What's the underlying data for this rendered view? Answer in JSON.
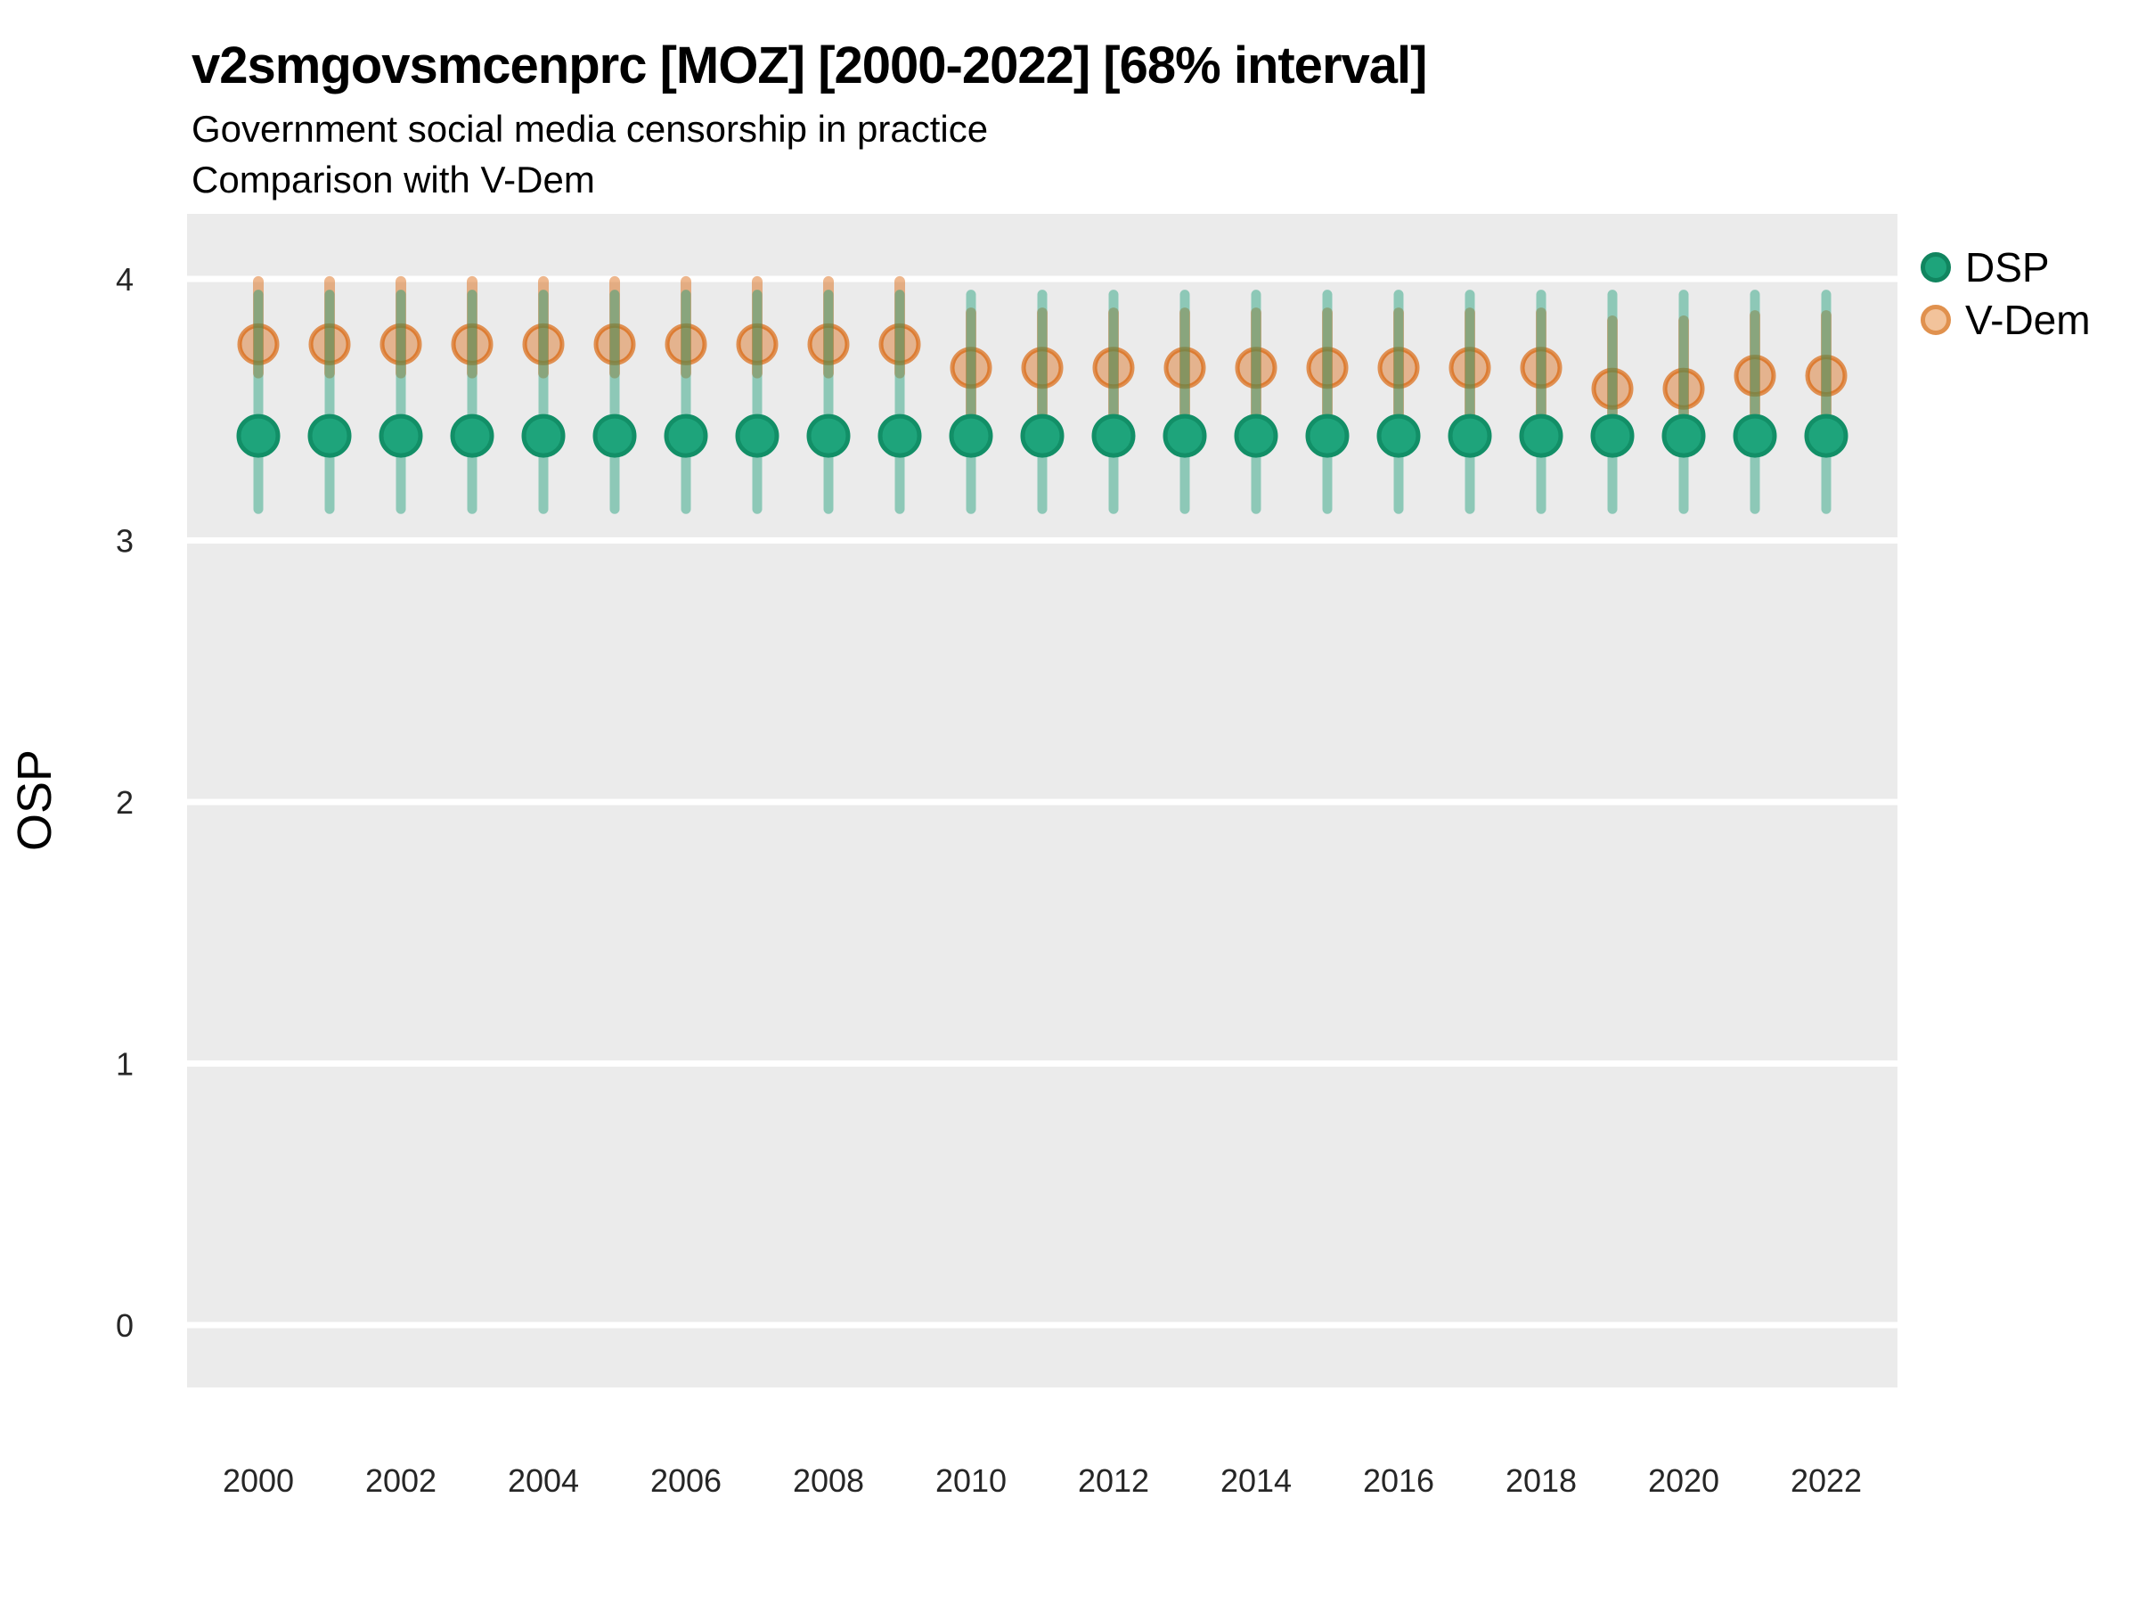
{
  "header": {
    "title": "v2smgovsmcenprc [MOZ] [2000-2022] [68% interval]",
    "subtitle_line1": "Government social media censorship in practice",
    "subtitle_line2": "Comparison with V-Dem"
  },
  "legend": {
    "items": [
      {
        "label": "DSP"
      },
      {
        "label": "V-Dem"
      }
    ]
  },
  "chart_data": {
    "type": "pointrange",
    "title": "v2smgovsmcenprc [MOZ] [2000-2022] [68% interval]",
    "subtitle": [
      "Government social media censorship in practice",
      "Comparison with V-Dem"
    ],
    "xlabel": "",
    "ylabel": "OSP",
    "ylim": [
      0,
      4
    ],
    "yticks": [
      0,
      1,
      2,
      3,
      4
    ],
    "xticks": [
      2000,
      2002,
      2004,
      2006,
      2008,
      2010,
      2012,
      2014,
      2016,
      2018,
      2020,
      2022
    ],
    "grid": "horizontal-major-only",
    "legend_position": "right",
    "interval_level": "68%",
    "years": [
      2000,
      2001,
      2002,
      2003,
      2004,
      2005,
      2006,
      2007,
      2008,
      2009,
      2010,
      2011,
      2012,
      2013,
      2014,
      2015,
      2016,
      2017,
      2018,
      2019,
      2020,
      2021,
      2022
    ],
    "series": [
      {
        "name": "DSP",
        "color": "#1B9E77",
        "point_fill": "#1EA47B",
        "point_stroke": "#128F67",
        "bar_color": "rgba(27,158,119,0.45)",
        "values": [
          3.4,
          3.4,
          3.4,
          3.4,
          3.4,
          3.4,
          3.4,
          3.4,
          3.4,
          3.4,
          3.4,
          3.4,
          3.4,
          3.4,
          3.4,
          3.4,
          3.4,
          3.4,
          3.4,
          3.4,
          3.4,
          3.4,
          3.4
        ],
        "lo": [
          3.12,
          3.12,
          3.12,
          3.12,
          3.12,
          3.12,
          3.12,
          3.12,
          3.12,
          3.12,
          3.12,
          3.12,
          3.12,
          3.12,
          3.12,
          3.12,
          3.12,
          3.12,
          3.12,
          3.12,
          3.12,
          3.12,
          3.12
        ],
        "hi": [
          3.94,
          3.94,
          3.94,
          3.94,
          3.94,
          3.94,
          3.94,
          3.94,
          3.94,
          3.94,
          3.94,
          3.94,
          3.94,
          3.94,
          3.94,
          3.94,
          3.94,
          3.94,
          3.94,
          3.94,
          3.94,
          3.94,
          3.94
        ]
      },
      {
        "name": "V-Dem",
        "color": "#D95F02",
        "point_fill": "rgba(217,95,2,0.40)",
        "point_stroke": "rgba(217,95,2,0.65)",
        "bar_color": "rgba(217,95,2,0.45)",
        "values": [
          3.75,
          3.75,
          3.75,
          3.75,
          3.75,
          3.75,
          3.75,
          3.75,
          3.75,
          3.75,
          3.66,
          3.66,
          3.66,
          3.66,
          3.66,
          3.66,
          3.66,
          3.66,
          3.66,
          3.58,
          3.58,
          3.63,
          3.63
        ],
        "lo": [
          3.64,
          3.64,
          3.64,
          3.64,
          3.64,
          3.64,
          3.64,
          3.64,
          3.64,
          3.64,
          3.48,
          3.48,
          3.48,
          3.48,
          3.48,
          3.48,
          3.48,
          3.48,
          3.48,
          3.42,
          3.42,
          3.45,
          3.45
        ],
        "hi": [
          3.99,
          3.99,
          3.99,
          3.99,
          3.99,
          3.99,
          3.99,
          3.99,
          3.99,
          3.99,
          3.87,
          3.87,
          3.87,
          3.87,
          3.87,
          3.87,
          3.87,
          3.87,
          3.87,
          3.84,
          3.84,
          3.86,
          3.86
        ]
      }
    ],
    "style": {
      "panel_bg": "#EBEBEB",
      "grid_color": "#FFFFFF",
      "tick_text_color": "#262626",
      "axis_title_color": "#000000"
    }
  }
}
